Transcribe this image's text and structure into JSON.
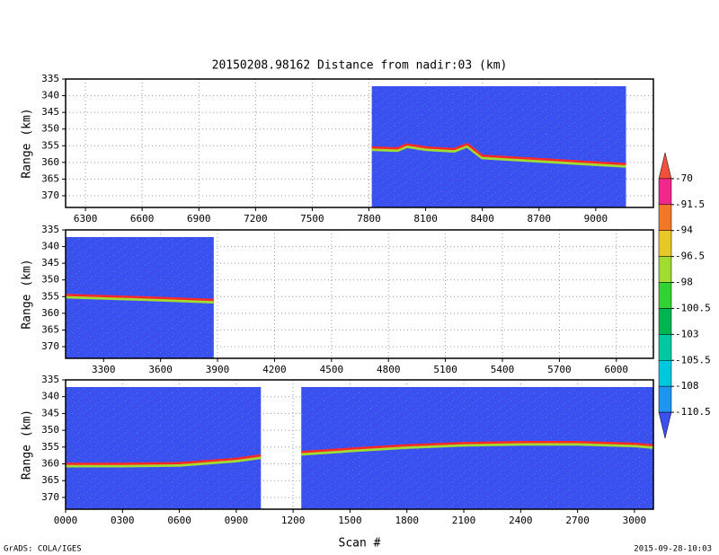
{
  "chart_data": [
    {
      "type": "line",
      "title": "20150208.98162    Distance from nadir:03 (km)",
      "ylabel": "Range (km)",
      "xlim": [
        6195,
        9305
      ],
      "xticks": [
        6300,
        6600,
        6900,
        7200,
        7500,
        7800,
        8100,
        8400,
        8700,
        9000
      ],
      "ylim": [
        335,
        373.5
      ],
      "yticks": [
        335,
        340,
        345,
        350,
        355,
        360,
        365,
        370
      ],
      "grid": true,
      "swaths": [
        [
          7815,
          9160
        ]
      ],
      "x": [
        7815,
        7950,
        8000,
        8100,
        8250,
        8320,
        8400,
        8700,
        9000,
        9160
      ],
      "values": [
        355.5,
        355.8,
        354.6,
        355.5,
        356,
        354.5,
        358,
        359,
        360,
        360.5
      ],
      "color": "#ff2828"
    },
    {
      "type": "line",
      "ylabel": "Range (km)",
      "xlim": [
        3100,
        6195
      ],
      "xticks": [
        3300,
        3600,
        3900,
        4200,
        4500,
        4800,
        5100,
        5400,
        5700,
        6000
      ],
      "ylim": [
        335,
        373.5
      ],
      "yticks": [
        335,
        340,
        345,
        350,
        355,
        360,
        365,
        370
      ],
      "grid": true,
      "swaths": [
        [
          3100,
          3880
        ]
      ],
      "x": [
        3100,
        3500,
        3880
      ],
      "values": [
        354.5,
        355.2,
        356
      ],
      "color": "#ff2828"
    },
    {
      "type": "line",
      "ylabel": "Range (km)",
      "xlabel": "Scan #",
      "xlim": [
        0,
        3100
      ],
      "xticks": [
        {
          "value": 0,
          "label": "0000"
        },
        {
          "value": 300,
          "label": "0300"
        },
        {
          "value": 600,
          "label": "0600"
        },
        {
          "value": 900,
          "label": "0900"
        },
        {
          "value": 1200,
          "label": "1200"
        },
        {
          "value": 1500,
          "label": "1500"
        },
        {
          "value": 1800,
          "label": "1800"
        },
        {
          "value": 2100,
          "label": "2100"
        },
        {
          "value": 2400,
          "label": "2400"
        },
        {
          "value": 2700,
          "label": "2700"
        },
        {
          "value": 3000,
          "label": "3000"
        }
      ],
      "ylim": [
        335,
        373.5
      ],
      "yticks": [
        335,
        340,
        345,
        350,
        355,
        360,
        365,
        370
      ],
      "grid": true,
      "swaths": [
        [
          0,
          1030
        ],
        [
          1243,
          3100
        ]
      ],
      "x": [
        0,
        300,
        600,
        900,
        1030,
        1100,
        1243,
        1500,
        1800,
        2100,
        2400,
        2700,
        3000,
        3100
      ],
      "values": [
        360,
        360,
        359.8,
        358.5,
        357.5,
        null,
        356.5,
        355.5,
        354.5,
        353.8,
        353.5,
        353.5,
        354,
        354.5
      ],
      "color": "#ff2828"
    }
  ],
  "colorbar": {
    "ticks": [
      -70,
      -91.5,
      -94,
      -96.5,
      -98,
      -100.5,
      -103,
      -105.5,
      -108,
      -110.5
    ],
    "colors": [
      "#f0503c",
      "#f0288c",
      "#f07828",
      "#e6c828",
      "#a0dc32",
      "#32d232",
      "#00b450",
      "#00c8a0",
      "#00c8dc",
      "#1e96f0",
      "#3c50f0"
    ]
  },
  "footer": {
    "left": "GrADS: COLA/IGES",
    "right": "2015-09-28-10:03"
  }
}
